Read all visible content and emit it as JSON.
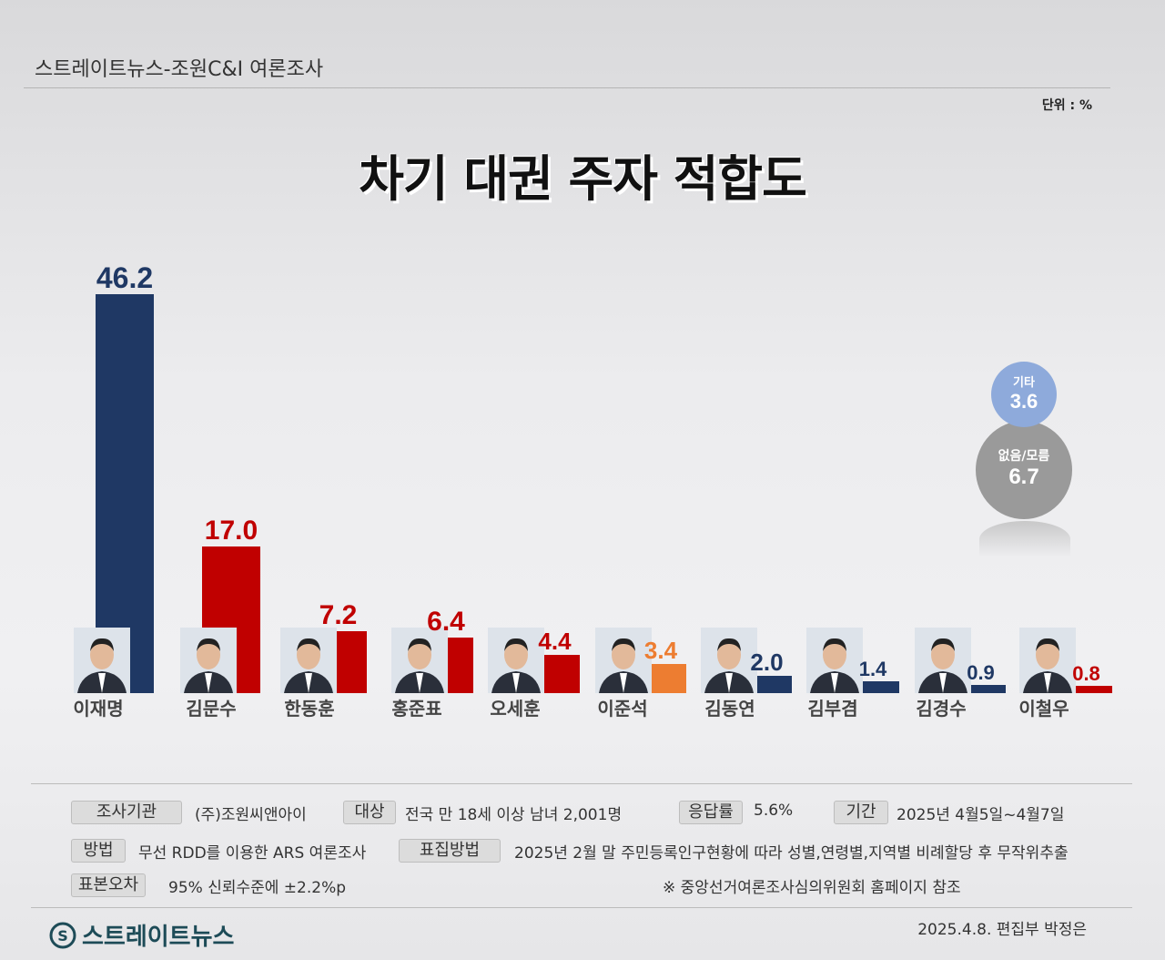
{
  "header": {
    "source": "스트레이트뉴스-조원C&I 여론조사",
    "unit": "단위 : %",
    "title": "차기 대권 주자  적합도"
  },
  "chart_data": {
    "type": "bar",
    "title": "차기 대권 주자  적합도",
    "unit": "%",
    "ylim": [
      0,
      46.2
    ],
    "categories": [
      "이재명",
      "김문수",
      "한동훈",
      "홍준표",
      "오세훈",
      "이준석",
      "김동연",
      "김부겸",
      "김경수",
      "이철우"
    ],
    "values": [
      46.2,
      17.0,
      7.2,
      6.4,
      4.4,
      3.4,
      2.0,
      1.4,
      0.9,
      0.8
    ],
    "value_labels": [
      "46.2",
      "17.0",
      "7.2",
      "6.4",
      "4.4",
      "3.4",
      "2.0",
      "1.4",
      "0.9",
      "0.8"
    ],
    "bar_colors": [
      "#1f3864",
      "#c00000",
      "#c00000",
      "#c00000",
      "#c00000",
      "#ed7d31",
      "#1f3864",
      "#1f3864",
      "#1f3864",
      "#c00000"
    ],
    "extra": [
      {
        "label": "기타",
        "value": "3.6",
        "color": "#8eaadb"
      },
      {
        "label": "없음/모름",
        "value": "6.7",
        "color": "#9a9a9a"
      }
    ]
  },
  "footer": {
    "tags": {
      "org": "조사기관",
      "target": "대상",
      "rate": "응답률",
      "period": "기간",
      "method": "방법",
      "sampling": "표집방법",
      "error": "표본오차"
    },
    "values": {
      "org": "(주)조원씨앤아이",
      "target": "전국 만 18세 이상 남녀 2,001명",
      "rate": "5.6%",
      "period": "2025년 4월5일~4월7일",
      "method": "무선 RDD를 이용한 ARS 여론조사",
      "sampling": "2025년 2월 말 주민등록인구현황에 따라 성별,연령별,지역별 비례할당 후 무작위추출",
      "error": "95% 신뢰수준에 ±2.2%p"
    },
    "note": "※ 중앙선거여론조사심의위원회 홈페이지 참조",
    "logo": "스트레이트뉴스",
    "credit": "2025.4.8. 편집부 박정은"
  }
}
